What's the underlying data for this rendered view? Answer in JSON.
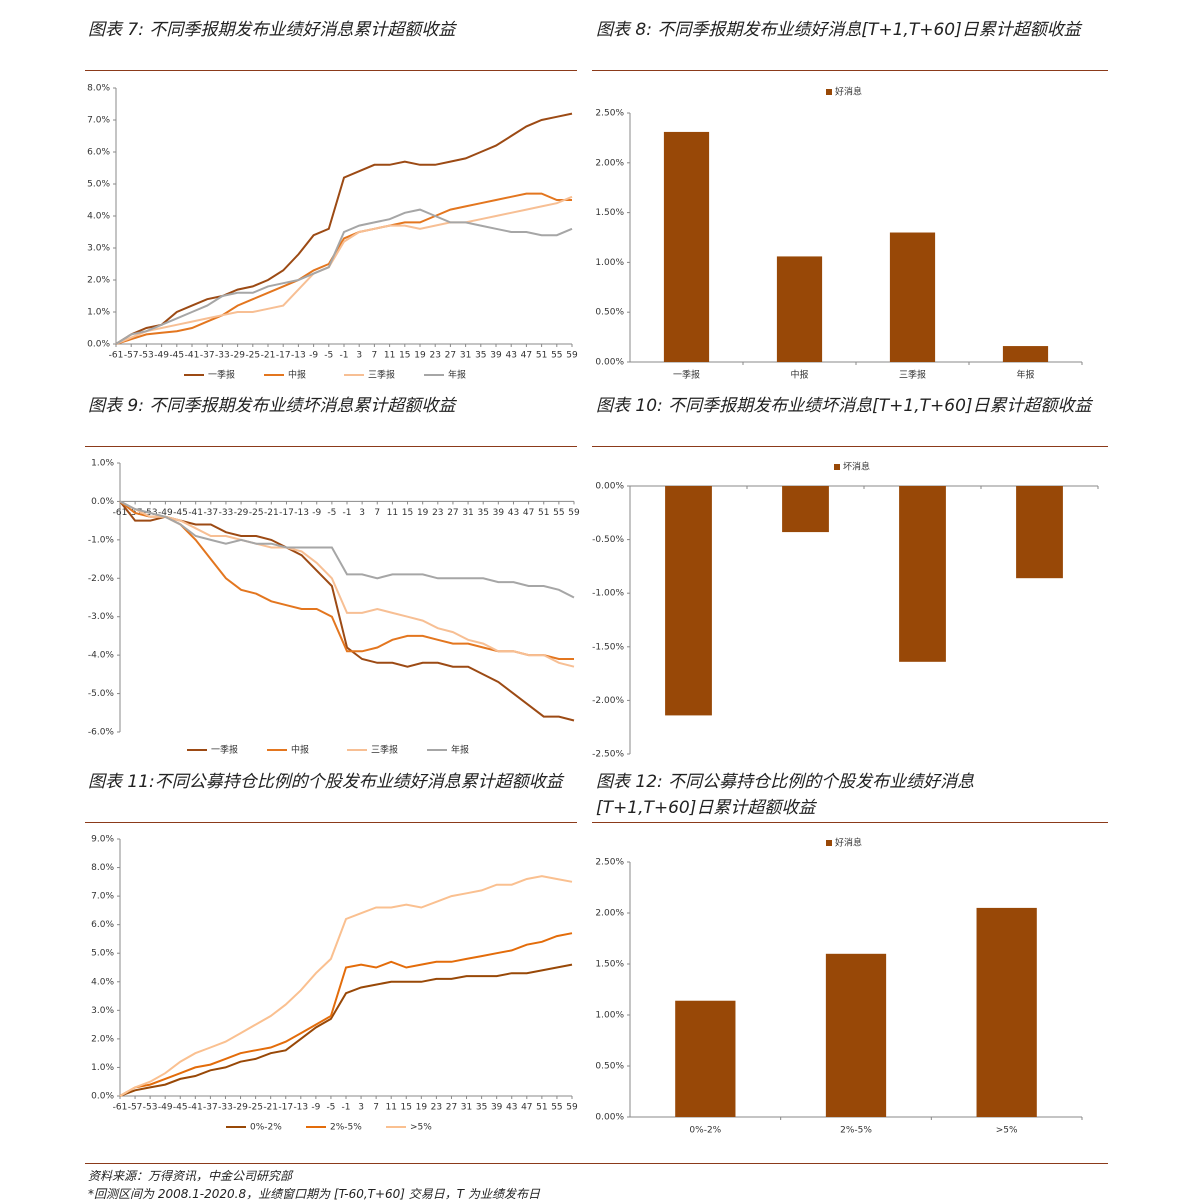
{
  "chart_data": [
    {
      "type": "line",
      "title": "图表 7:  不同季报期发布业绩好消息累计超额收益",
      "x": [
        -61,
        -57,
        -53,
        -49,
        -45,
        -41,
        -37,
        -33,
        -29,
        -25,
        -21,
        -17,
        -13,
        -9,
        -5,
        -1,
        3,
        7,
        11,
        15,
        19,
        23,
        27,
        31,
        35,
        39,
        43,
        47,
        51,
        55,
        59
      ],
      "xlim": [
        -61,
        59
      ],
      "xticks": [
        -61,
        -57,
        -53,
        -49,
        -45,
        -41,
        -37,
        -33,
        -29,
        -25,
        -21,
        -17,
        -13,
        -9,
        -5,
        -1,
        3,
        7,
        11,
        15,
        19,
        23,
        27,
        31,
        35,
        39,
        43,
        47,
        51,
        55,
        59
      ],
      "ylim": [
        0,
        8
      ],
      "yticks": [
        {
          "value": 0,
          "label": "0.0%"
        },
        {
          "value": 1,
          "label": "1.0%"
        },
        {
          "value": 2,
          "label": "2.0%"
        },
        {
          "value": 3,
          "label": "3.0%"
        },
        {
          "value": 4,
          "label": "4.0%"
        },
        {
          "value": 5,
          "label": "5.0%"
        },
        {
          "value": 6,
          "label": "6.0%"
        },
        {
          "value": 7,
          "label": "7.0%"
        },
        {
          "value": 8,
          "label": "8.0%"
        }
      ],
      "series": [
        {
          "name": "一季报",
          "color": "#9c4a14",
          "values": [
            0,
            0.3,
            0.5,
            0.6,
            1.0,
            1.2,
            1.4,
            1.5,
            1.7,
            1.8,
            2.0,
            2.3,
            2.8,
            3.4,
            3.6,
            5.2,
            5.4,
            5.6,
            5.6,
            5.7,
            5.6,
            5.6,
            5.7,
            5.8,
            6.0,
            6.2,
            6.5,
            6.8,
            7.0,
            7.1,
            7.2
          ]
        },
        {
          "name": "中报",
          "color": "#e3761f",
          "values": [
            0,
            0.15,
            0.3,
            0.35,
            0.4,
            0.5,
            0.7,
            0.9,
            1.2,
            1.4,
            1.6,
            1.8,
            2.0,
            2.3,
            2.5,
            3.3,
            3.5,
            3.6,
            3.7,
            3.8,
            3.8,
            4.0,
            4.2,
            4.3,
            4.4,
            4.5,
            4.6,
            4.7,
            4.7,
            4.5,
            4.5
          ]
        },
        {
          "name": "三季报",
          "color": "#f7bf94",
          "values": [
            0,
            0.2,
            0.4,
            0.5,
            0.6,
            0.7,
            0.8,
            0.9,
            1.0,
            1.0,
            1.1,
            1.2,
            1.7,
            2.2,
            2.4,
            3.2,
            3.5,
            3.6,
            3.7,
            3.7,
            3.6,
            3.7,
            3.8,
            3.8,
            3.9,
            4.0,
            4.1,
            4.2,
            4.3,
            4.4,
            4.6
          ]
        },
        {
          "name": "年报",
          "color": "#a6a6a6",
          "values": [
            0,
            0.3,
            0.4,
            0.6,
            0.8,
            1.0,
            1.2,
            1.5,
            1.6,
            1.6,
            1.8,
            1.9,
            2.0,
            2.2,
            2.4,
            3.5,
            3.7,
            3.8,
            3.9,
            4.1,
            4.2,
            4.0,
            3.8,
            3.8,
            3.7,
            3.6,
            3.5,
            3.5,
            3.4,
            3.4,
            3.6
          ]
        }
      ]
    },
    {
      "type": "bar",
      "title": "图表 8:  不同季报期发布业绩好消息[T+1,T+60]日累计超额收益",
      "categories": [
        "一季报",
        "中报",
        "三季报",
        "年报"
      ],
      "ylim": [
        0,
        2.5
      ],
      "yticks": [
        {
          "value": 0,
          "label": "0.00%"
        },
        {
          "value": 0.5,
          "label": "0.50%"
        },
        {
          "value": 1,
          "label": "1.00%"
        },
        {
          "value": 1.5,
          "label": "1.50%"
        },
        {
          "value": 2,
          "label": "2.00%"
        },
        {
          "value": 2.5,
          "label": "2.50%"
        }
      ],
      "series": [
        {
          "name": "好消息",
          "color": "#984807",
          "values": [
            2.31,
            1.06,
            1.3,
            0.16
          ]
        }
      ]
    },
    {
      "type": "line",
      "title": "图表 9:  不同季报期发布业绩坏消息累计超额收益",
      "x": [
        -61,
        -57,
        -53,
        -49,
        -45,
        -41,
        -37,
        -33,
        -29,
        -25,
        -21,
        -17,
        -13,
        -9,
        -5,
        -1,
        3,
        7,
        11,
        15,
        19,
        23,
        27,
        31,
        35,
        39,
        43,
        47,
        51,
        55,
        59
      ],
      "xlim": [
        -61,
        59
      ],
      "xticks": [
        -61,
        -57,
        -53,
        -49,
        -45,
        -41,
        -37,
        -33,
        -29,
        -25,
        -21,
        -17,
        -13,
        -9,
        -5,
        -1,
        3,
        7,
        11,
        15,
        19,
        23,
        27,
        31,
        35,
        39,
        43,
        47,
        51,
        55,
        59
      ],
      "ylim": [
        -6,
        1
      ],
      "yticks": [
        {
          "value": 1,
          "label": "1.0%"
        },
        {
          "value": 0,
          "label": "0.0%"
        },
        {
          "value": -1,
          "label": "-1.0%"
        },
        {
          "value": -2,
          "label": "-2.0%"
        },
        {
          "value": -3,
          "label": "-3.0%"
        },
        {
          "value": -4,
          "label": "-4.0%"
        },
        {
          "value": -5,
          "label": "-5.0%"
        },
        {
          "value": -6,
          "label": "-6.0%"
        }
      ],
      "series": [
        {
          "name": "一季报",
          "color": "#9c4a14",
          "values": [
            0,
            -0.5,
            -0.5,
            -0.4,
            -0.5,
            -0.6,
            -0.6,
            -0.8,
            -0.9,
            -0.9,
            -1.0,
            -1.2,
            -1.4,
            -1.8,
            -2.2,
            -3.8,
            -4.1,
            -4.2,
            -4.2,
            -4.3,
            -4.2,
            -4.2,
            -4.3,
            -4.3,
            -4.5,
            -4.7,
            -5.0,
            -5.3,
            -5.6,
            -5.6,
            -5.7
          ]
        },
        {
          "name": "中报",
          "color": "#e3761f",
          "values": [
            0,
            -0.3,
            -0.4,
            -0.4,
            -0.6,
            -1.0,
            -1.5,
            -2.0,
            -2.3,
            -2.4,
            -2.6,
            -2.7,
            -2.8,
            -2.8,
            -3.0,
            -3.9,
            -3.9,
            -3.8,
            -3.6,
            -3.5,
            -3.5,
            -3.6,
            -3.7,
            -3.7,
            -3.8,
            -3.9,
            -3.9,
            -4.0,
            -4.0,
            -4.1,
            -4.1
          ]
        },
        {
          "name": "三季报",
          "color": "#f7bf94",
          "values": [
            0,
            -0.2,
            -0.4,
            -0.4,
            -0.5,
            -0.7,
            -0.9,
            -0.9,
            -1.0,
            -1.1,
            -1.2,
            -1.2,
            -1.3,
            -1.6,
            -2.0,
            -2.9,
            -2.9,
            -2.8,
            -2.9,
            -3.0,
            -3.1,
            -3.3,
            -3.4,
            -3.6,
            -3.7,
            -3.9,
            -3.9,
            -4.0,
            -4.0,
            -4.2,
            -4.3
          ]
        },
        {
          "name": "年报",
          "color": "#a6a6a6",
          "values": [
            0,
            -0.2,
            -0.3,
            -0.4,
            -0.6,
            -0.9,
            -1.0,
            -1.1,
            -1.0,
            -1.1,
            -1.1,
            -1.2,
            -1.2,
            -1.2,
            -1.2,
            -1.9,
            -1.9,
            -2.0,
            -1.9,
            -1.9,
            -1.9,
            -2.0,
            -2.0,
            -2.0,
            -2.0,
            -2.1,
            -2.1,
            -2.2,
            -2.2,
            -2.3,
            -2.5
          ]
        }
      ]
    },
    {
      "type": "bar",
      "title": "图表 10:  不同季报期发布业绩坏消息[T+1,T+60]日累计超额收益",
      "categories": [
        "一季报",
        "中报",
        "三季报",
        "年报"
      ],
      "ylim": [
        -2.5,
        0
      ],
      "yticks": [
        {
          "value": 0,
          "label": "0.00%"
        },
        {
          "value": -0.5,
          "label": "-0.50%"
        },
        {
          "value": -1,
          "label": "-1.00%"
        },
        {
          "value": -1.5,
          "label": "-1.50%"
        },
        {
          "value": -2,
          "label": "-2.00%"
        },
        {
          "value": -2.5,
          "label": "-2.50%"
        }
      ],
      "series": [
        {
          "name": "坏消息",
          "color": "#984807",
          "values": [
            -2.14,
            -0.43,
            -1.64,
            -0.86
          ]
        }
      ]
    },
    {
      "type": "line",
      "title": "图表 11:不同公募持仓比例的个股发布业绩好消息累计超额收益",
      "x": [
        -61,
        -57,
        -53,
        -49,
        -45,
        -41,
        -37,
        -33,
        -29,
        -25,
        -21,
        -17,
        -13,
        -9,
        -5,
        -1,
        3,
        7,
        11,
        15,
        19,
        23,
        27,
        31,
        35,
        39,
        43,
        47,
        51,
        55,
        59
      ],
      "xlim": [
        -61,
        59
      ],
      "xticks": [
        -61,
        -57,
        -53,
        -49,
        -45,
        -41,
        -37,
        -33,
        -29,
        -25,
        -21,
        -17,
        -13,
        -9,
        -5,
        -1,
        3,
        7,
        11,
        15,
        19,
        23,
        27,
        31,
        35,
        39,
        43,
        47,
        51,
        55,
        59
      ],
      "ylim": [
        0,
        9
      ],
      "yticks": [
        {
          "value": 0,
          "label": "0.0%"
        },
        {
          "value": 1,
          "label": "1.0%"
        },
        {
          "value": 2,
          "label": "2.0%"
        },
        {
          "value": 3,
          "label": "3.0%"
        },
        {
          "value": 4,
          "label": "4.0%"
        },
        {
          "value": 5,
          "label": "5.0%"
        },
        {
          "value": 6,
          "label": "6.0%"
        },
        {
          "value": 7,
          "label": "7.0%"
        },
        {
          "value": 8,
          "label": "8.0%"
        },
        {
          "value": 9,
          "label": "9.0%"
        }
      ],
      "series": [
        {
          "name": "0%-2%",
          "color": "#984807",
          "values": [
            0,
            0.2,
            0.3,
            0.4,
            0.6,
            0.7,
            0.9,
            1.0,
            1.2,
            1.3,
            1.5,
            1.6,
            2.0,
            2.4,
            2.7,
            3.6,
            3.8,
            3.9,
            4.0,
            4.0,
            4.0,
            4.1,
            4.1,
            4.2,
            4.2,
            4.2,
            4.3,
            4.3,
            4.4,
            4.5,
            4.6
          ]
        },
        {
          "name": "2%-5%",
          "color": "#e36c0a",
          "values": [
            0,
            0.3,
            0.4,
            0.6,
            0.8,
            1.0,
            1.1,
            1.3,
            1.5,
            1.6,
            1.7,
            1.9,
            2.2,
            2.5,
            2.8,
            4.5,
            4.6,
            4.5,
            4.7,
            4.5,
            4.6,
            4.7,
            4.7,
            4.8,
            4.9,
            5.0,
            5.1,
            5.3,
            5.4,
            5.6,
            5.7
          ]
        },
        {
          "name": ">5%",
          "color": "#fac090",
          "values": [
            0,
            0.3,
            0.5,
            0.8,
            1.2,
            1.5,
            1.7,
            1.9,
            2.2,
            2.5,
            2.8,
            3.2,
            3.7,
            4.3,
            4.8,
            6.2,
            6.4,
            6.6,
            6.6,
            6.7,
            6.6,
            6.8,
            7.0,
            7.1,
            7.2,
            7.4,
            7.4,
            7.6,
            7.7,
            7.6,
            7.5
          ]
        }
      ]
    },
    {
      "type": "bar",
      "title": "图表 12:  不同公募持仓比例的个股发布业绩好消息[T+1,T+60]日累计超额收益",
      "categories": [
        "0%-2%",
        "2%-5%",
        ">5%"
      ],
      "ylim": [
        0,
        2.5
      ],
      "yticks": [
        {
          "value": 0,
          "label": "0.00%"
        },
        {
          "value": 0.5,
          "label": "0.50%"
        },
        {
          "value": 1,
          "label": "1.00%"
        },
        {
          "value": 1.5,
          "label": "1.50%"
        },
        {
          "value": 2,
          "label": "2.00%"
        },
        {
          "value": 2.5,
          "label": "2.50%"
        }
      ],
      "series": [
        {
          "name": "好消息",
          "color": "#984807",
          "values": [
            1.14,
            1.6,
            2.05
          ]
        }
      ]
    }
  ],
  "source": "资料来源：万得资讯，中金公司研究部",
  "note": "*回测区间为 2008.1-2020.8，业绩窗口期为 [T-60,T+60] 交易日，T 为业绩发布日"
}
